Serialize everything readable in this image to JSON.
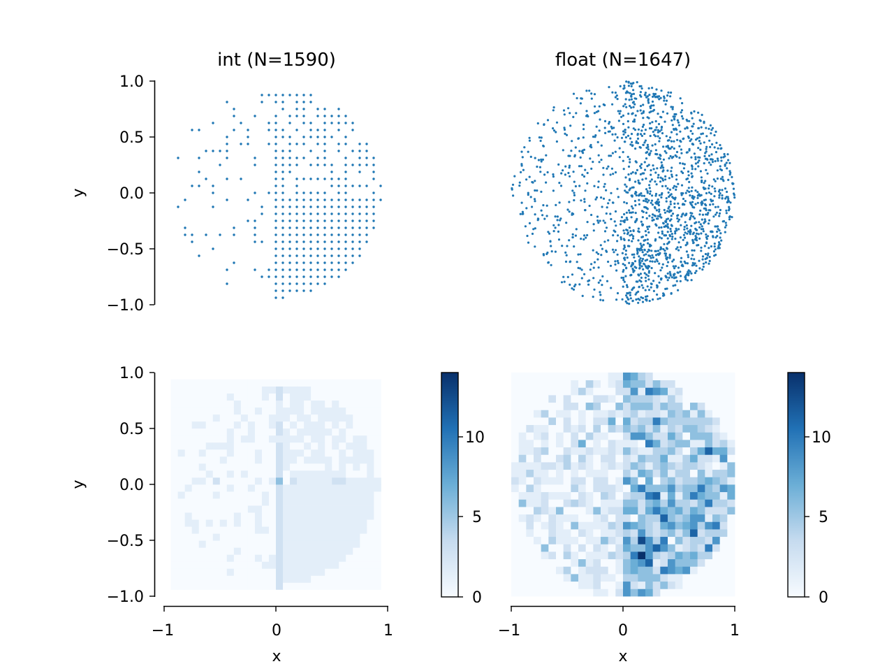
{
  "figure": {
    "background": "#ffffff"
  },
  "chart_data": [
    {
      "type": "scatter",
      "title": "int (N=1590)",
      "xlabel": "",
      "ylabel": "y",
      "xlim": [
        -1,
        1
      ],
      "ylim": [
        -1,
        1
      ],
      "yticks": [
        "1.0",
        "0.5",
        "0.0",
        "−0.5",
        "−1.0"
      ],
      "xticks": [],
      "grid": false,
      "point_color": "#1f77b4",
      "lattice_spacing": 0.0625,
      "coverage_note": "integer-lattice points in unit disc; upper-right quadrant and lower-right quadrant fully populated, left half sparse",
      "n_points": 1590
    },
    {
      "type": "scatter",
      "title": "float (N=1647)",
      "xlabel": "",
      "ylabel": "",
      "xlim": [
        -1,
        1
      ],
      "ylim": [
        -1,
        1
      ],
      "xticks": [],
      "yticks": [],
      "grid": false,
      "point_color": "#1f77b4",
      "n_points": 1647
    },
    {
      "type": "heatmap",
      "title": "",
      "xlabel": "x",
      "ylabel": "y",
      "xlim": [
        -1,
        1
      ],
      "ylim": [
        -1,
        1
      ],
      "xticks": [
        "−1",
        "0",
        "1"
      ],
      "yticks": [
        "1.0",
        "0.5",
        "0.0",
        "−0.5",
        "−1.0"
      ],
      "colormap": "Blues",
      "bins": 30,
      "colorbar": {
        "min": 0,
        "max": 14,
        "ticks": [
          "0",
          "5",
          "10"
        ]
      }
    },
    {
      "type": "heatmap",
      "title": "",
      "xlabel": "x",
      "ylabel": "",
      "xlim": [
        -1,
        1
      ],
      "ylim": [
        -1,
        1
      ],
      "xticks": [
        "−1",
        "0",
        "1"
      ],
      "yticks": [],
      "colormap": "Blues",
      "bins": 30,
      "colorbar": {
        "min": 0,
        "max": 14,
        "ticks": [
          "0",
          "5",
          "10"
        ]
      }
    }
  ],
  "labels": {
    "title_int": "int (N=1590)",
    "title_float": "float (N=1647)",
    "ylabel_top": "y",
    "ylabel_bottom": "y",
    "xlabel_left": "x",
    "xlabel_right": "x",
    "tick_y_1": "1.0",
    "tick_y_05": "0.5",
    "tick_y_0": "0.0",
    "tick_y_m05": "−0.5",
    "tick_y_m1": "−1.0",
    "tick_x_m1": "−1",
    "tick_x_0": "0",
    "tick_x_1": "1",
    "cb_0": "0",
    "cb_5": "5",
    "cb_10": "10"
  }
}
